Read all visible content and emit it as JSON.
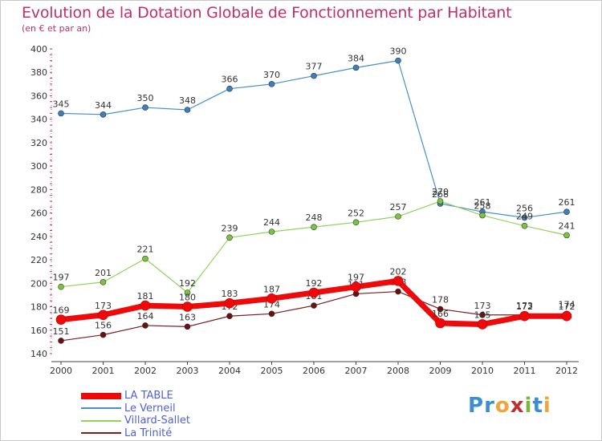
{
  "title": "Evolution de la Dotation Globale de Fonctionnement par Habitant",
  "subtitle": "(en € et par an)",
  "logo": {
    "text": "Proxiti",
    "letter_colors": [
      "#3a8fd0",
      "#3a8fd0",
      "#f2a33a",
      "#c03030",
      "#7ab83a",
      "#3a8fd0",
      "#f2a33a"
    ]
  },
  "colors": {
    "axis": "#333333",
    "grid_tick": "#c0306a",
    "text": "#333333"
  },
  "chart_data": {
    "type": "line",
    "categories": [
      "2000",
      "2001",
      "2002",
      "2003",
      "2004",
      "2005",
      "2006",
      "2007",
      "2008",
      "2009",
      "2010",
      "2011",
      "2012"
    ],
    "ylim": [
      140,
      400
    ],
    "yticks": [
      140,
      160,
      180,
      200,
      220,
      240,
      260,
      280,
      300,
      320,
      340,
      360,
      380,
      400
    ],
    "grid": false,
    "legend_position": "bottom-left",
    "series": [
      {
        "name": "Le Verneil",
        "color": "#4a90c8",
        "label_color": "#333333",
        "point_color": "#3d7fbd",
        "width": 1.2,
        "values": [
          345,
          344,
          350,
          348,
          366,
          370,
          377,
          384,
          390,
          268,
          261,
          256,
          261
        ]
      },
      {
        "name": "Villard-Sallet",
        "color": "#8fd45a",
        "label_color": "#333333",
        "point_color": "#7ac440",
        "width": 1.2,
        "values": [
          197,
          201,
          221,
          192,
          239,
          244,
          248,
          252,
          257,
          270,
          258,
          249,
          241
        ]
      },
      {
        "name": "La Trinité",
        "color": "#7a1e1e",
        "label_color": "#333333",
        "point_color": "#6a1010",
        "width": 1.2,
        "values": [
          151,
          156,
          164,
          163,
          172,
          174,
          181,
          191,
          193,
          178,
          173,
          173,
          174
        ]
      },
      {
        "name": "LA TABLE",
        "color": "#ee0a0a",
        "label_color": "#333333",
        "point_color": "#ee0a0a",
        "width": 7,
        "values": [
          169,
          173,
          181,
          180,
          183,
          187,
          192,
          197,
          202,
          166,
          165,
          172,
          172
        ]
      }
    ]
  },
  "legend": {
    "items": [
      {
        "label": "LA TABLE",
        "color": "#ee0a0a",
        "text_color": "#5060d8",
        "thickness": 8
      },
      {
        "label": "Le Verneil",
        "color": "#4a90c8",
        "text_color": "#5060d8",
        "thickness": 2
      },
      {
        "label": "Villard-Sallet",
        "color": "#8fd45a",
        "text_color": "#5060d8",
        "thickness": 2
      },
      {
        "label": "La Trinité",
        "color": "#7a1e1e",
        "text_color": "#5060d8",
        "thickness": 2
      }
    ]
  }
}
